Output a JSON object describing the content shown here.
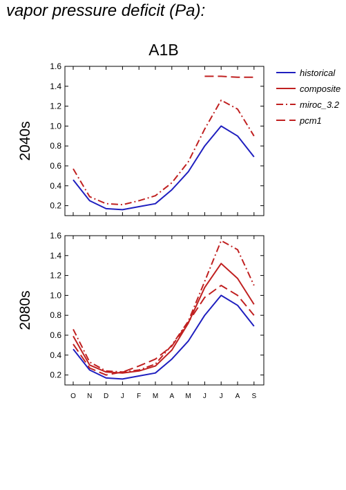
{
  "page_title": "vapor pressure deficit (Pa):",
  "scenario_label": "A1B",
  "legend": [
    "historical",
    "composite",
    "miroc_3.2",
    "pcm1"
  ],
  "colors": {
    "historical": "#1f1fbf",
    "projection": "#c02020"
  },
  "chart_data": [
    {
      "type": "line",
      "row_label": "2040s",
      "title": "A1B",
      "categories": [
        "O",
        "N",
        "D",
        "J",
        "F",
        "M",
        "A",
        "M",
        "J",
        "J",
        "A",
        "S"
      ],
      "ylim": [
        0.1,
        1.6
      ],
      "yticks": [
        "0.2",
        "0.4",
        "0.6",
        "0.8",
        "1.0",
        "1.2",
        "1.4",
        "1.6"
      ],
      "series": [
        {
          "name": "historical",
          "values": [
            0.46,
            0.25,
            0.17,
            0.16,
            0.19,
            0.22,
            0.36,
            0.54,
            0.8,
            1.0,
            0.9,
            0.69
          ]
        },
        {
          "name": "miroc_3.2",
          "values": [
            0.57,
            0.29,
            0.22,
            0.21,
            0.25,
            0.3,
            0.43,
            0.64,
            0.97,
            1.26,
            1.17,
            0.9
          ]
        },
        {
          "name": "pcm1",
          "values": [
            null,
            null,
            null,
            null,
            null,
            null,
            null,
            null,
            1.5,
            1.5,
            1.49,
            1.49
          ]
        }
      ]
    },
    {
      "type": "line",
      "row_label": "2080s",
      "categories": [
        "O",
        "N",
        "D",
        "J",
        "F",
        "M",
        "A",
        "M",
        "J",
        "J",
        "A",
        "S"
      ],
      "ylim": [
        0.1,
        1.6
      ],
      "yticks": [
        "0.2",
        "0.4",
        "0.6",
        "0.8",
        "1.0",
        "1.2",
        "1.4",
        "1.6"
      ],
      "series": [
        {
          "name": "historical",
          "values": [
            0.46,
            0.25,
            0.17,
            0.16,
            0.19,
            0.22,
            0.36,
            0.54,
            0.8,
            1.0,
            0.9,
            0.69
          ]
        },
        {
          "name": "composite",
          "values": [
            0.59,
            0.3,
            0.23,
            0.22,
            0.24,
            0.29,
            0.45,
            0.72,
            1.08,
            1.32,
            1.17,
            0.91
          ]
        },
        {
          "name": "miroc_3.2",
          "values": [
            0.66,
            0.33,
            0.24,
            0.23,
            0.25,
            0.31,
            0.5,
            0.74,
            1.14,
            1.55,
            1.46,
            1.1
          ]
        },
        {
          "name": "pcm1",
          "values": [
            0.51,
            0.27,
            0.2,
            0.23,
            0.29,
            0.36,
            0.49,
            0.73,
            0.98,
            1.1,
            1.0,
            0.8
          ]
        }
      ]
    }
  ]
}
